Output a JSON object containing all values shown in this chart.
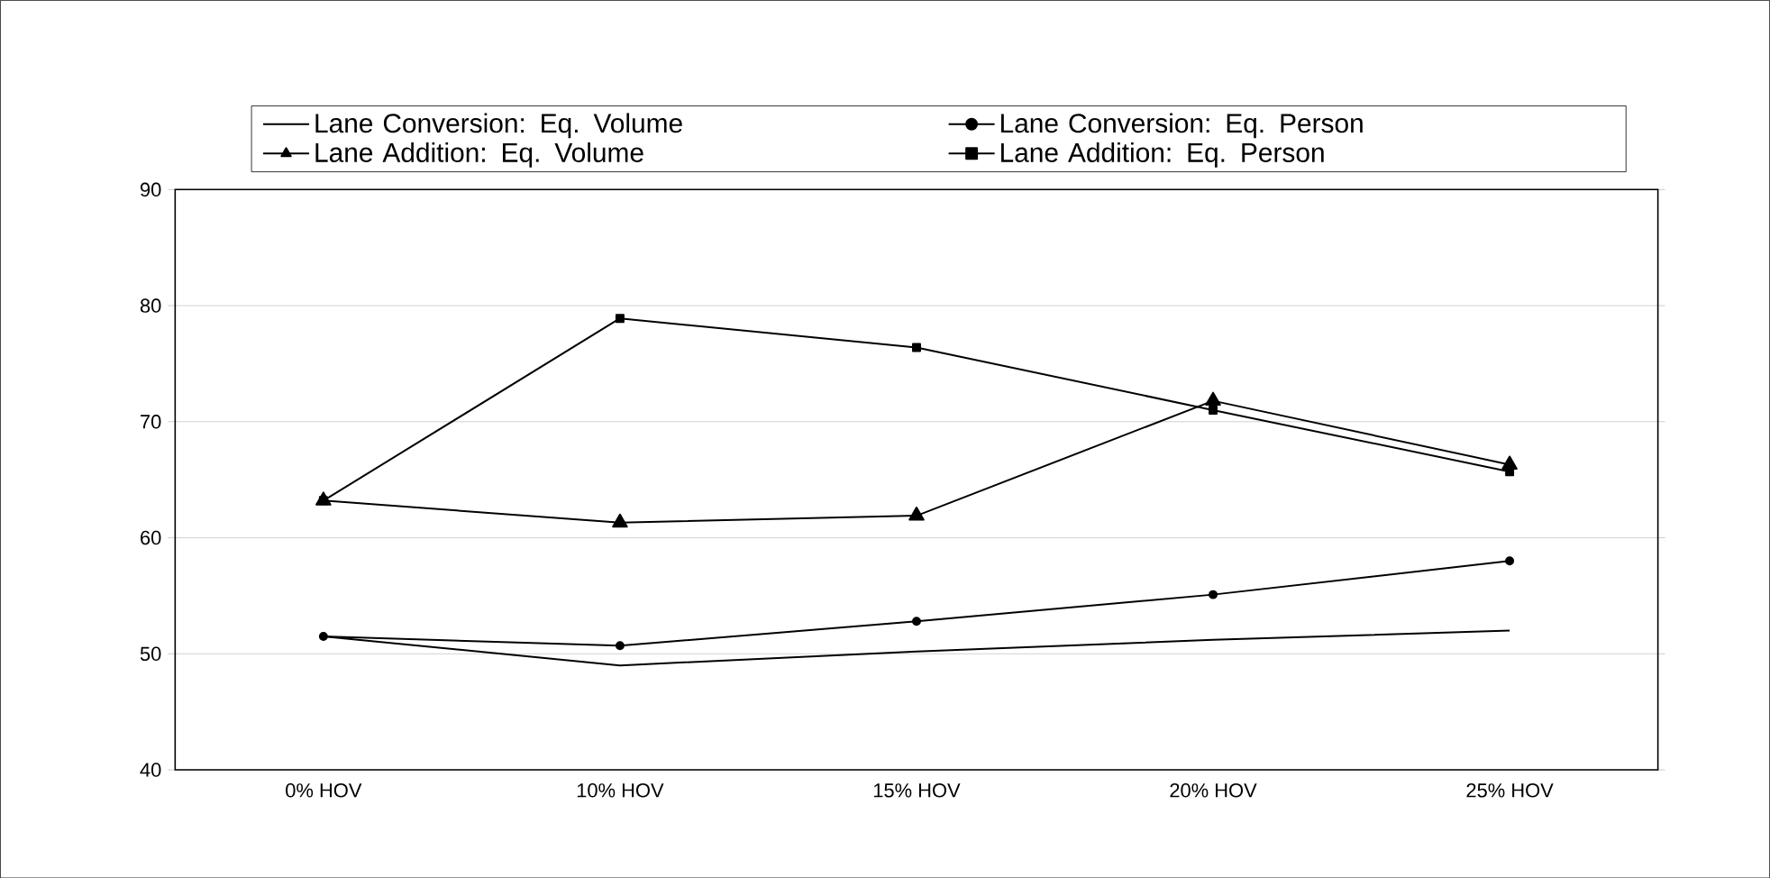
{
  "chart_data": {
    "type": "line",
    "categories": [
      "0% HOV",
      "10% HOV",
      "15% HOV",
      "20% HOV",
      "25% HOV"
    ],
    "series": [
      {
        "name": "Lane Conversion: Eq. Volume",
        "color": "#000000",
        "marker": "none",
        "values": [
          51.5,
          49.0,
          50.2,
          51.2,
          52.0
        ]
      },
      {
        "name": "Lane Conversion: Eq. Person",
        "color": "#000000",
        "marker": "circle",
        "values": [
          51.5,
          50.7,
          52.8,
          55.1,
          58.0
        ]
      },
      {
        "name": "Lane Addition: Eq. Volume",
        "color": "#000000",
        "marker": "triangle",
        "values": [
          63.2,
          61.3,
          61.9,
          71.8,
          66.3
        ]
      },
      {
        "name": "Lane Addition: Eq. Person",
        "color": "#000000",
        "marker": "square",
        "values": [
          63.2,
          78.9,
          76.4,
          71.0,
          65.7
        ]
      }
    ],
    "ylim": [
      40,
      90
    ],
    "yticks": [
      40,
      50,
      60,
      70,
      80,
      90
    ],
    "grid": "y",
    "legend": "top",
    "line_style": "solid"
  }
}
